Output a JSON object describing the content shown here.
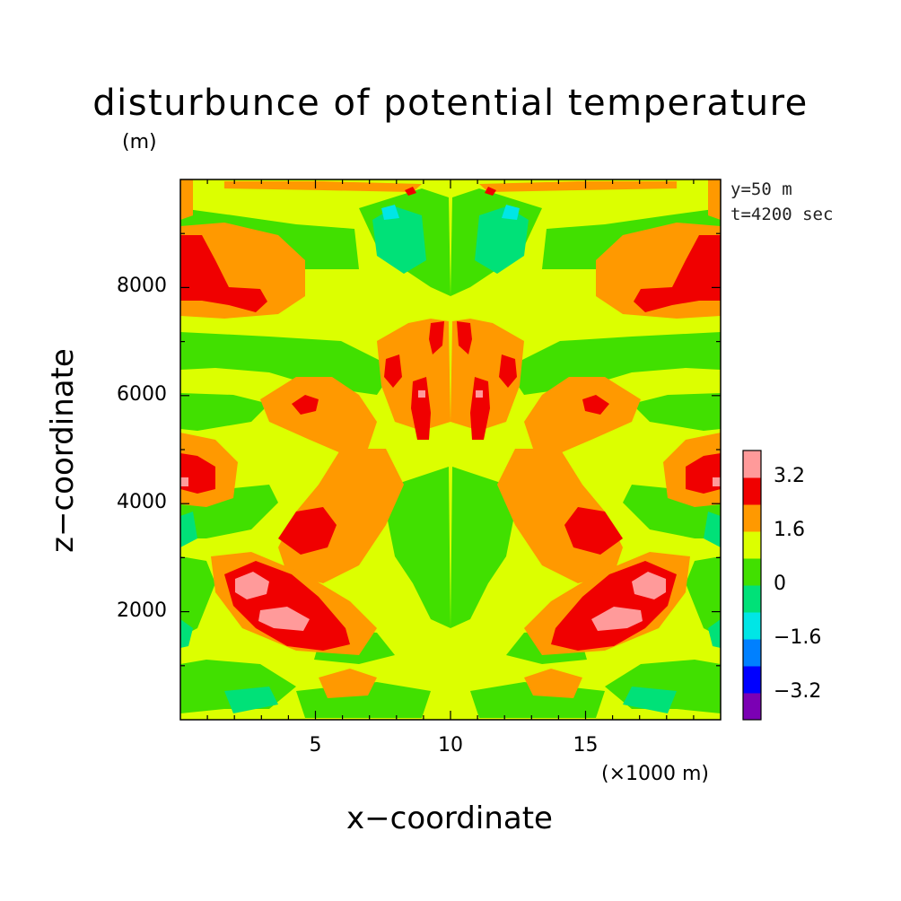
{
  "chart_data": {
    "type": "heatmap",
    "title": "disturbunce of potential temperature",
    "ylabel_unit": "(m)",
    "xlabel": "x−coordinate",
    "ylabel": "z−coordinate",
    "x_unit": "(×1000 m)",
    "annotations": [
      "y=50 m",
      "t=4200 sec"
    ],
    "xlim": [
      0,
      20
    ],
    "ylim": [
      0,
      10000
    ],
    "x_ticks": [
      5,
      10,
      15
    ],
    "x_tick_labels": [
      "5",
      "10",
      "15"
    ],
    "y_ticks": [
      2000,
      4000,
      6000,
      8000
    ],
    "y_tick_labels": [
      "2000",
      "4000",
      "6000",
      "8000"
    ],
    "colorbar": {
      "levels": [
        -4.0,
        -3.2,
        -2.4,
        -1.6,
        -0.8,
        0,
        0.8,
        1.6,
        2.4,
        3.2,
        4.0
      ],
      "tick_labels": [
        "−3.2",
        "−1.6",
        "0",
        "1.6",
        "3.2"
      ],
      "colors": [
        "#7b00b4",
        "#0000ff",
        "#0080ff",
        "#00e6e6",
        "#00e178",
        "#41e000",
        "#dcff00",
        "#ff9900",
        "#f00000",
        "#ff9a9a"
      ]
    },
    "grid": false,
    "field_description": "mirror-symmetric about x=10"
  }
}
